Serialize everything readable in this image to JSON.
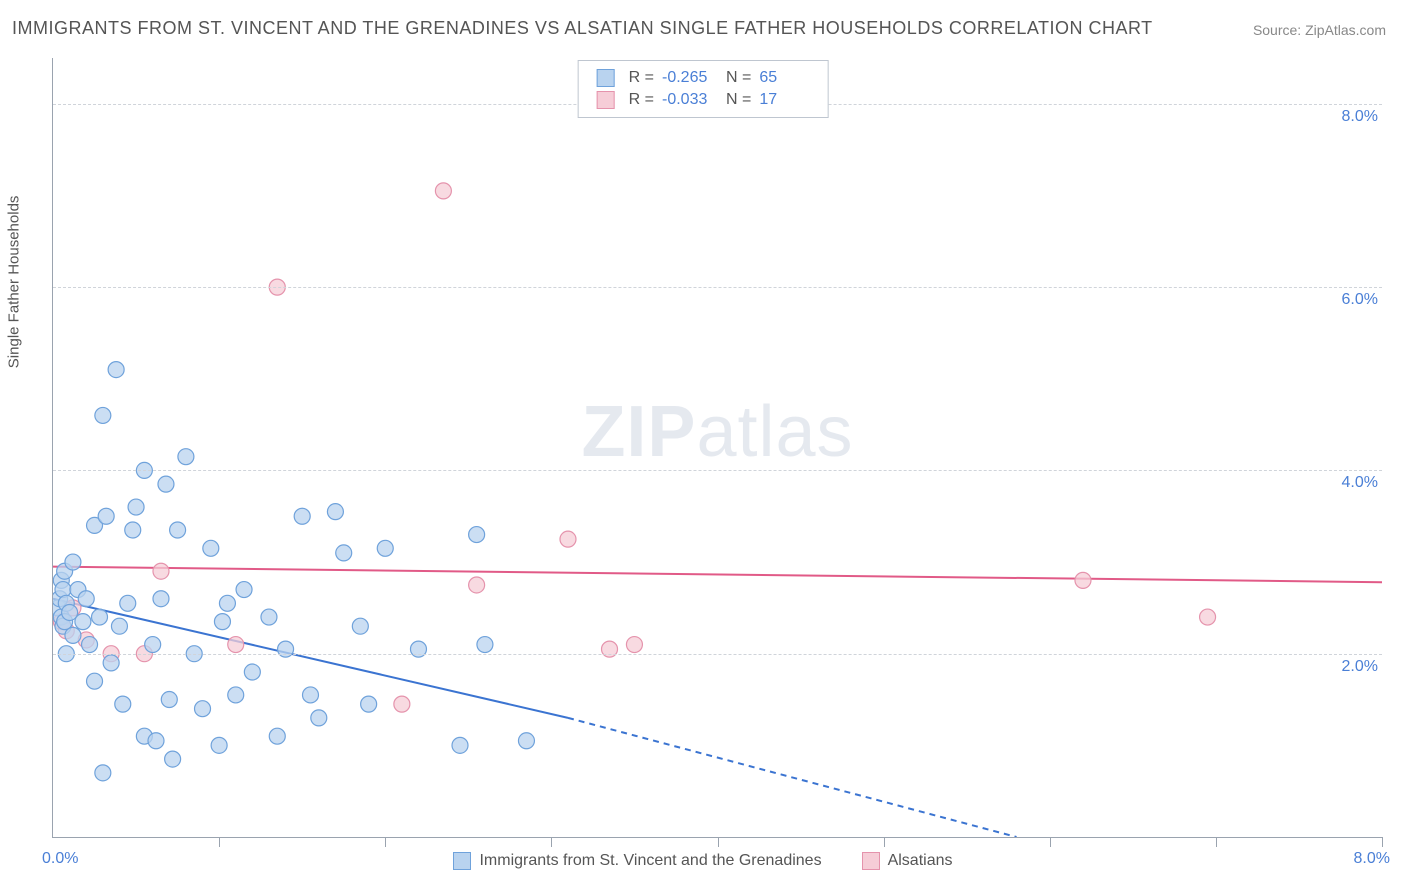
{
  "title": "IMMIGRANTS FROM ST. VINCENT AND THE GRENADINES VS ALSATIAN SINGLE FATHER HOUSEHOLDS CORRELATION CHART",
  "source_prefix": "Source: ",
  "source_name": "ZipAtlas.com",
  "watermark_bold": "ZIP",
  "watermark_light": "atlas",
  "y_axis_label": "Single Father Households",
  "chart": {
    "type": "scatter",
    "xlim": [
      0,
      8
    ],
    "ylim": [
      0,
      8.5
    ],
    "x_origin_label": "0.0%",
    "x_max_label": "8.0%",
    "y_ticks": [
      2.0,
      4.0,
      6.0,
      8.0
    ],
    "y_tick_labels": [
      "2.0%",
      "4.0%",
      "6.0%",
      "8.0%"
    ],
    "x_tick_positions": [
      1.0,
      2.0,
      3.0,
      4.0,
      5.0,
      6.0,
      7.0,
      8.0
    ],
    "grid_color": "#d0d4da",
    "background_color": "#ffffff",
    "marker_radius": 8,
    "marker_stroke_width": 1.2,
    "series": [
      {
        "id": "series_a",
        "label": "Immigrants from St. Vincent and the Grenadines",
        "fill_color": "#b9d3ef",
        "stroke_color": "#6fa2db",
        "swatch_fill": "#b9d3ef",
        "swatch_border": "#6fa2db",
        "R": "-0.265",
        "N": "65",
        "trend": {
          "x1": 0.0,
          "y1": 2.6,
          "x2": 3.1,
          "y2": 1.3,
          "dash_x2": 5.8,
          "dash_y2": 0.0,
          "color": "#3b74d1",
          "width": 2
        },
        "points": [
          [
            0.03,
            2.5
          ],
          [
            0.04,
            2.6
          ],
          [
            0.05,
            2.8
          ],
          [
            0.05,
            2.4
          ],
          [
            0.06,
            2.3
          ],
          [
            0.06,
            2.7
          ],
          [
            0.07,
            2.35
          ],
          [
            0.07,
            2.9
          ],
          [
            0.08,
            2.0
          ],
          [
            0.08,
            2.55
          ],
          [
            0.1,
            2.45
          ],
          [
            0.12,
            3.0
          ],
          [
            0.12,
            2.2
          ],
          [
            0.15,
            2.7
          ],
          [
            0.18,
            2.35
          ],
          [
            0.2,
            2.6
          ],
          [
            0.22,
            2.1
          ],
          [
            0.25,
            1.7
          ],
          [
            0.25,
            3.4
          ],
          [
            0.28,
            2.4
          ],
          [
            0.3,
            4.6
          ],
          [
            0.3,
            0.7
          ],
          [
            0.32,
            3.5
          ],
          [
            0.35,
            1.9
          ],
          [
            0.38,
            5.1
          ],
          [
            0.4,
            2.3
          ],
          [
            0.42,
            1.45
          ],
          [
            0.45,
            2.55
          ],
          [
            0.48,
            3.35
          ],
          [
            0.5,
            3.6
          ],
          [
            0.55,
            1.1
          ],
          [
            0.55,
            4.0
          ],
          [
            0.6,
            2.1
          ],
          [
            0.62,
            1.05
          ],
          [
            0.65,
            2.6
          ],
          [
            0.68,
            3.85
          ],
          [
            0.7,
            1.5
          ],
          [
            0.72,
            0.85
          ],
          [
            0.75,
            3.35
          ],
          [
            0.8,
            4.15
          ],
          [
            0.85,
            2.0
          ],
          [
            0.9,
            1.4
          ],
          [
            0.95,
            3.15
          ],
          [
            1.0,
            1.0
          ],
          [
            1.02,
            2.35
          ],
          [
            1.05,
            2.55
          ],
          [
            1.1,
            1.55
          ],
          [
            1.15,
            2.7
          ],
          [
            1.2,
            1.8
          ],
          [
            1.3,
            2.4
          ],
          [
            1.35,
            1.1
          ],
          [
            1.4,
            2.05
          ],
          [
            1.5,
            3.5
          ],
          [
            1.55,
            1.55
          ],
          [
            1.6,
            1.3
          ],
          [
            1.7,
            3.55
          ],
          [
            1.75,
            3.1
          ],
          [
            1.85,
            2.3
          ],
          [
            1.9,
            1.45
          ],
          [
            2.0,
            3.15
          ],
          [
            2.2,
            2.05
          ],
          [
            2.45,
            1.0
          ],
          [
            2.6,
            2.1
          ],
          [
            2.85,
            1.05
          ],
          [
            2.55,
            3.3
          ]
        ]
      },
      {
        "id": "series_b",
        "label": "Alsatians",
        "fill_color": "#f6cdd7",
        "stroke_color": "#e593ac",
        "swatch_fill": "#f6cdd7",
        "swatch_border": "#e593ac",
        "R": "-0.033",
        "N": "17",
        "trend": {
          "x1": 0.0,
          "y1": 2.95,
          "x2": 8.0,
          "y2": 2.78,
          "color": "#e15a87",
          "width": 2
        },
        "points": [
          [
            0.05,
            2.35
          ],
          [
            0.08,
            2.25
          ],
          [
            0.12,
            2.5
          ],
          [
            0.2,
            2.15
          ],
          [
            0.35,
            2.0
          ],
          [
            0.55,
            2.0
          ],
          [
            0.65,
            2.9
          ],
          [
            1.1,
            2.1
          ],
          [
            1.35,
            6.0
          ],
          [
            2.1,
            1.45
          ],
          [
            2.35,
            7.05
          ],
          [
            2.55,
            2.75
          ],
          [
            3.1,
            3.25
          ],
          [
            3.35,
            2.05
          ],
          [
            3.5,
            2.1
          ],
          [
            6.2,
            2.8
          ],
          [
            6.95,
            2.4
          ]
        ]
      }
    ]
  },
  "legend_top": {
    "r_label": "R =",
    "n_label": "N ="
  }
}
